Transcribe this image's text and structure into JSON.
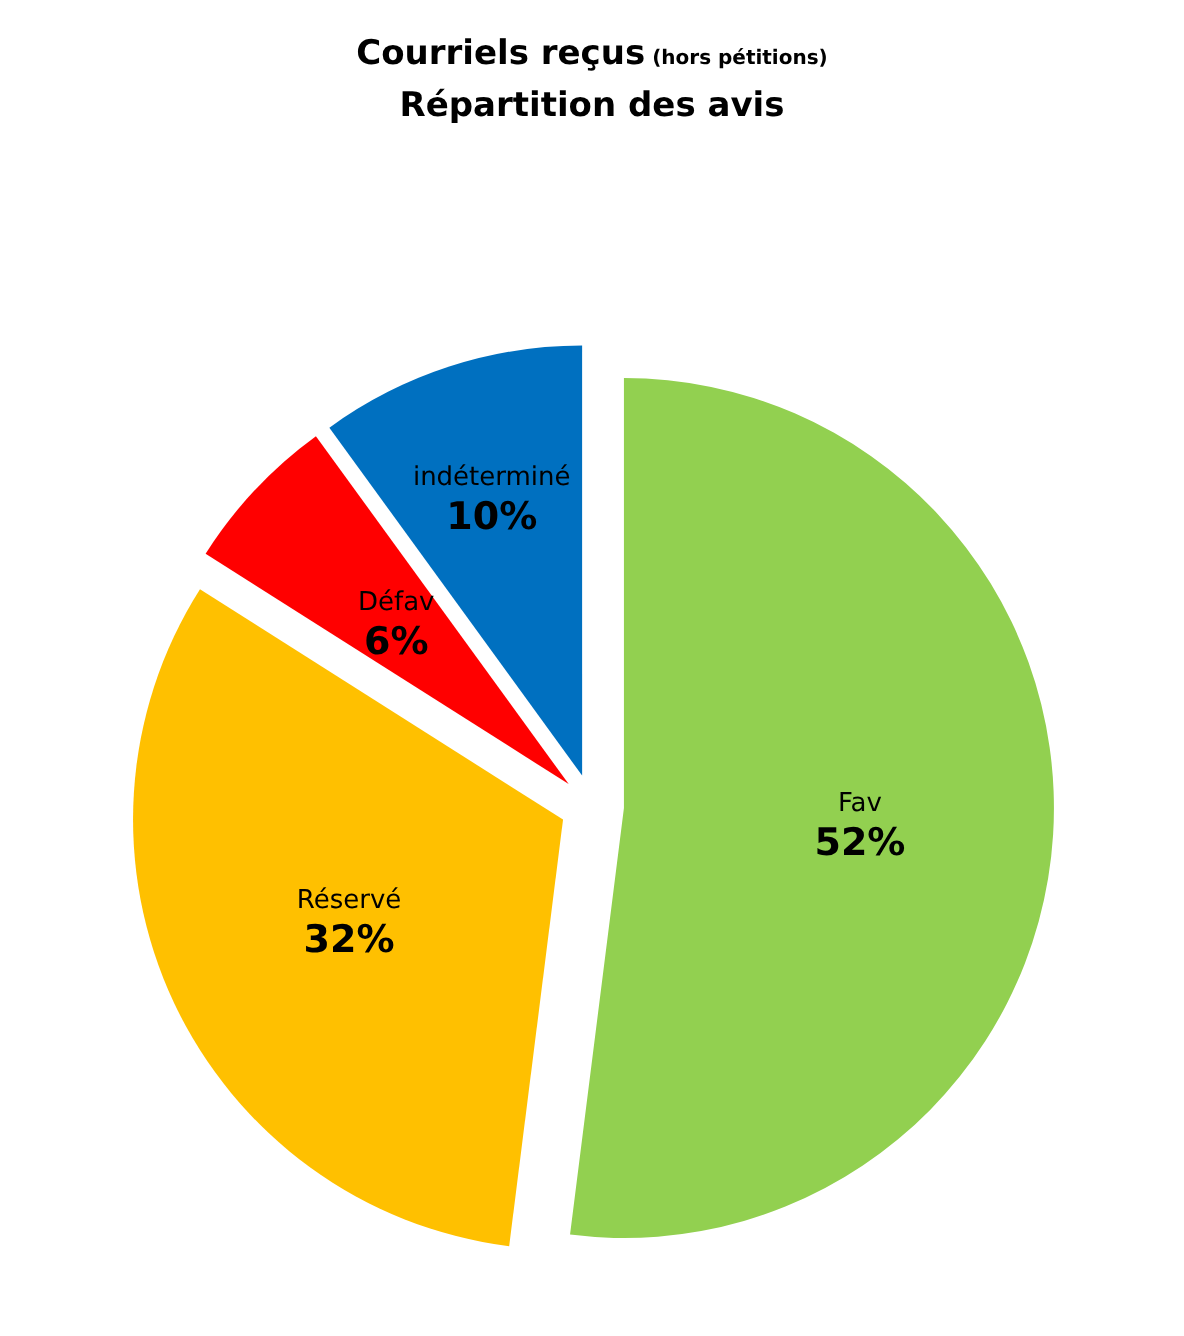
{
  "chart_data": {
    "type": "pie",
    "title": "Courriels reçus (hors pétitions)",
    "subtitle": "Répartition des avis",
    "categories": [
      "Fav",
      "Réservé",
      "Défav",
      "indéterminé"
    ],
    "values": [
      52,
      32,
      6,
      10
    ],
    "value_labels": [
      "52%",
      "32%",
      "6%",
      "10%"
    ],
    "colors": [
      "#92d050",
      "#ffc000",
      "#ff0000",
      "#0070c0"
    ]
  }
}
